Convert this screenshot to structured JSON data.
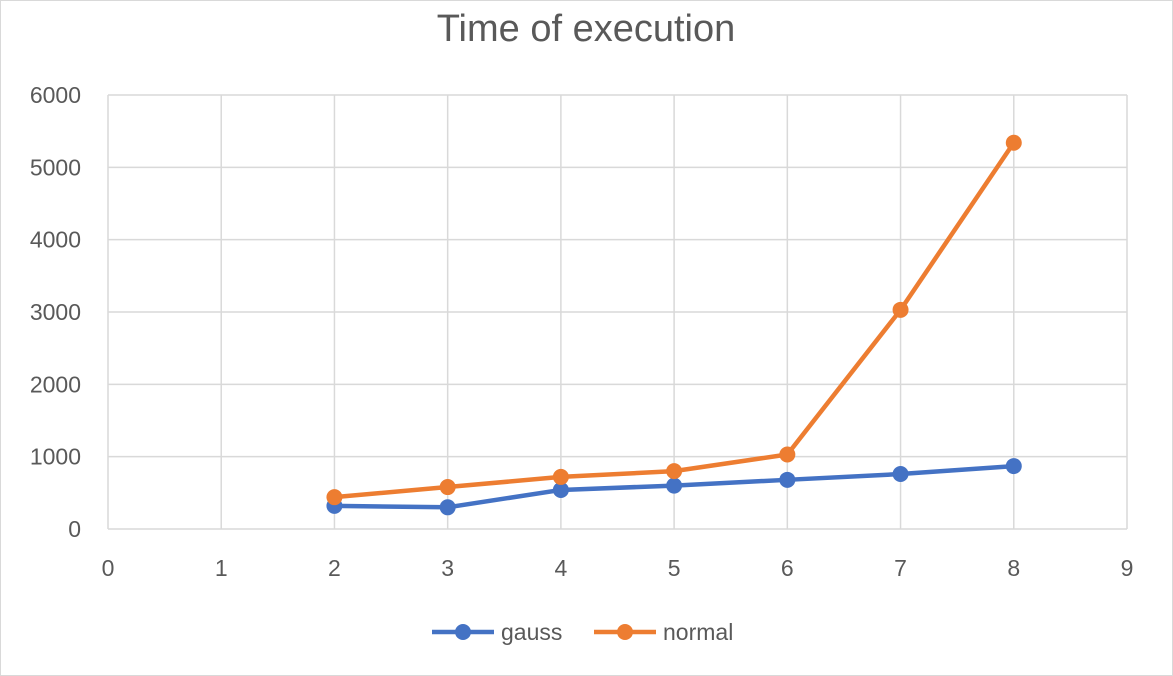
{
  "chart_data": {
    "type": "scatter",
    "title": "Time of execution",
    "xlabel": "",
    "ylabel": "",
    "xlim": [
      0,
      9
    ],
    "ylim": [
      0,
      6000
    ],
    "x_ticks": [
      "0",
      "1",
      "2",
      "3",
      "4",
      "5",
      "6",
      "7",
      "8",
      "9"
    ],
    "y_ticks": [
      "0",
      "1000",
      "2000",
      "3000",
      "4000",
      "5000",
      "6000"
    ],
    "grid": true,
    "legend_position": "bottom",
    "series": [
      {
        "name": "gauss",
        "color": "#4472c4",
        "x": [
          2,
          3,
          4,
          5,
          6,
          7,
          8
        ],
        "y": [
          320,
          300,
          540,
          600,
          680,
          760,
          870
        ]
      },
      {
        "name": "normal",
        "color": "#ed7d31",
        "x": [
          2,
          3,
          4,
          5,
          6,
          7,
          8
        ],
        "y": [
          440,
          580,
          720,
          800,
          1030,
          3030,
          5340
        ]
      }
    ]
  }
}
